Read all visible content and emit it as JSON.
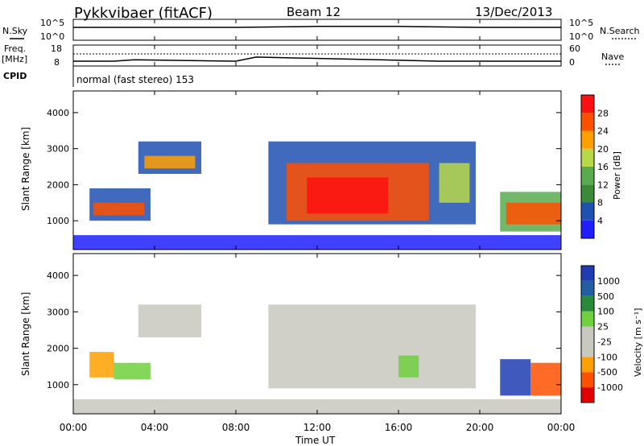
{
  "header": {
    "station": "Pykkvibaer (fitACF)",
    "beam": "Beam 12",
    "date": "13/Dec/2013"
  },
  "labels": {
    "nsky": "N.Sky",
    "freq": "Freq.",
    "mhz": "[MHz]",
    "cpid": "CPID",
    "nsearch": "N.Search",
    "nave": "Nave",
    "cpid_text": "normal (fast stereo) 153",
    "time_axis": "Time UT",
    "slant_range": "Slant Range [km]",
    "power_label": "Power [dB]",
    "velocity_label": "Velocity [m s⁻¹]"
  },
  "colors": {
    "power_scale": [
      "#1e1eff",
      "#2050b0",
      "#3a8a3a",
      "#5aaa50",
      "#b8d84a",
      "#ffa000",
      "#ff5000",
      "#ff1010"
    ],
    "velocity_scale": [
      "#e00000",
      "#ff5000",
      "#ffa000",
      "#c8c8c0",
      "#c8c8c0",
      "#70d040",
      "#2a8a3a",
      "#2060a0",
      "#1f3cb0"
    ]
  },
  "chart_data": [
    {
      "type": "line",
      "title": "N.Sky / N.Search",
      "x": [
        "00:00",
        "04:00",
        "08:00",
        "12:00",
        "16:00",
        "20:00",
        "00:00"
      ],
      "yticks_left": [
        "10^5",
        "10^0"
      ],
      "yticks_right": [
        "10^5",
        "10^0"
      ],
      "series": [
        {
          "name": "N.Sky",
          "values": [
            10,
            10,
            10,
            12,
            12,
            10,
            10
          ]
        },
        {
          "name": "N.Search",
          "values": [
            10,
            10,
            10,
            10,
            10,
            10,
            10
          ]
        }
      ]
    },
    {
      "type": "line",
      "title": "Freq / Nave",
      "x": [
        "00:00",
        "02:00",
        "03:00",
        "08:00",
        "09:00",
        "18:00",
        "24:00"
      ],
      "yticks_left": [
        "18",
        "8"
      ],
      "yticks_right": [
        "60",
        "0"
      ],
      "series": [
        {
          "name": "Freq",
          "values": [
            9,
            9,
            10,
            9,
            12,
            9,
            9
          ]
        },
        {
          "name": "Nave",
          "values": [
            30,
            30,
            30,
            30,
            30,
            30,
            30
          ]
        }
      ]
    },
    {
      "type": "heatmap",
      "title": "Power [dB]",
      "xlabel": "",
      "ylabel": "Slant Range [km]",
      "x_ticks": [
        "00:00",
        "04:00",
        "08:00",
        "12:00",
        "16:00",
        "20:00",
        "00:00"
      ],
      "y_ticks": [
        1000,
        2000,
        3000,
        4000
      ],
      "xlim": [
        0,
        24
      ],
      "ylim": [
        200,
        4600
      ],
      "colorbar_ticks": [
        "4",
        "8",
        "12",
        "16",
        "20",
        "24",
        "28"
      ],
      "cells": [
        {
          "t0": 0.0,
          "t1": 24.0,
          "r0": 200,
          "r1": 600,
          "v": 0
        },
        {
          "t0": 0.8,
          "t1": 3.8,
          "r0": 1000,
          "r1": 1900,
          "v": 1
        },
        {
          "t0": 1.0,
          "t1": 3.5,
          "r0": 1150,
          "r1": 1500,
          "v": 6
        },
        {
          "t0": 3.2,
          "t1": 6.3,
          "r0": 2300,
          "r1": 3200,
          "v": 1
        },
        {
          "t0": 3.5,
          "t1": 6.0,
          "r0": 2450,
          "r1": 2800,
          "v": 5
        },
        {
          "t0": 9.6,
          "t1": 19.8,
          "r0": 900,
          "r1": 3200,
          "v": 1
        },
        {
          "t0": 10.5,
          "t1": 17.5,
          "r0": 1000,
          "r1": 2600,
          "v": 6
        },
        {
          "t0": 11.5,
          "t1": 15.5,
          "r0": 1200,
          "r1": 2200,
          "v": 7
        },
        {
          "t0": 18.0,
          "t1": 19.5,
          "r0": 1500,
          "r1": 2600,
          "v": 4
        },
        {
          "t0": 21.0,
          "t1": 24.0,
          "r0": 700,
          "r1": 1800,
          "v": 3
        },
        {
          "t0": 21.3,
          "t1": 24.0,
          "r0": 900,
          "r1": 1500,
          "v": 6
        }
      ]
    },
    {
      "type": "heatmap",
      "title": "Velocity [m s⁻¹]",
      "xlabel": "Time UT",
      "ylabel": "Slant Range [km]",
      "x_ticks": [
        "00:00",
        "04:00",
        "08:00",
        "12:00",
        "16:00",
        "20:00",
        "00:00"
      ],
      "y_ticks": [
        1000,
        2000,
        3000,
        4000
      ],
      "xlim": [
        0,
        24
      ],
      "ylim": [
        200,
        4600
      ],
      "colorbar_ticks": [
        "-1000",
        "-500",
        "-100",
        "-25",
        "25",
        "100",
        "500",
        "1000"
      ],
      "cells": [
        {
          "t0": 0.0,
          "t1": 24.0,
          "r0": 200,
          "r1": 600,
          "v": 3
        },
        {
          "t0": 0.8,
          "t1": 2.0,
          "r0": 1200,
          "r1": 1900,
          "v": 2
        },
        {
          "t0": 2.0,
          "t1": 3.8,
          "r0": 1150,
          "r1": 1600,
          "v": 5
        },
        {
          "t0": 3.2,
          "t1": 6.3,
          "r0": 2300,
          "r1": 3200,
          "v": 3
        },
        {
          "t0": 9.6,
          "t1": 19.8,
          "r0": 900,
          "r1": 3200,
          "v": 3
        },
        {
          "t0": 16.0,
          "t1": 17.0,
          "r0": 1200,
          "r1": 1800,
          "v": 5
        },
        {
          "t0": 21.0,
          "t1": 22.5,
          "r0": 700,
          "r1": 1700,
          "v": 8
        },
        {
          "t0": 22.5,
          "t1": 24.0,
          "r0": 700,
          "r1": 1600,
          "v": 1
        }
      ]
    }
  ]
}
